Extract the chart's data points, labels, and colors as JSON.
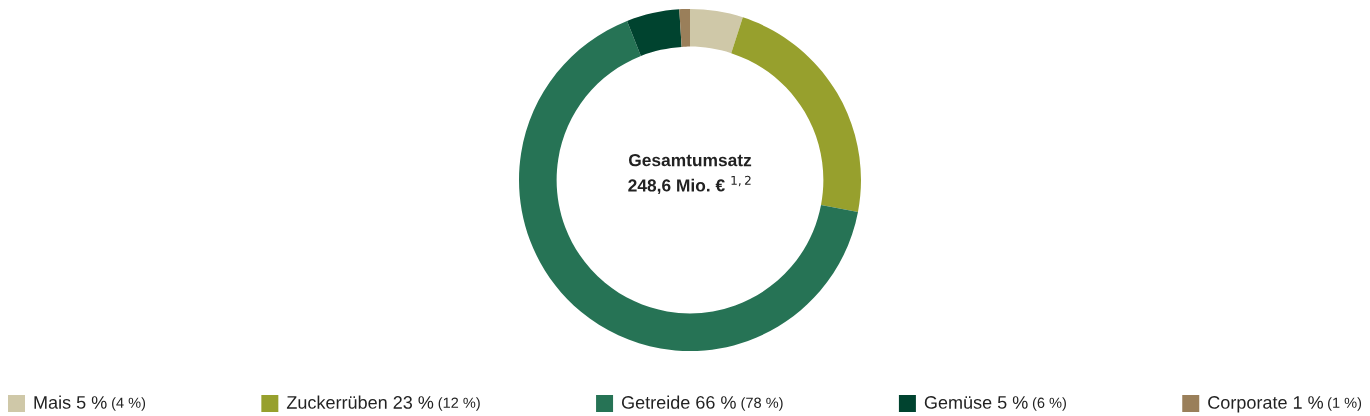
{
  "chart_data": {
    "type": "donut",
    "title": "Gesamtumsatz",
    "subtitle": "248,6 Mio. € $^{1,2}$",
    "categories": [
      "Mais",
      "Zuckerrüben",
      "Getreide",
      "Gemüse",
      "Corporate"
    ],
    "values": [
      5,
      23,
      66,
      5,
      1
    ],
    "value_labels": [
      "5 %",
      "23 %",
      "66 %",
      "5 %",
      "1 %"
    ],
    "annotations": [
      "(4 %)",
      "(12 %)",
      "(78 %)",
      "(6 %)",
      "(1 %)"
    ],
    "colors": [
      "#cfc8a8",
      "#97a02d",
      "#267355",
      "#00432f",
      "#9a7f5a"
    ],
    "legend": "bottom"
  }
}
